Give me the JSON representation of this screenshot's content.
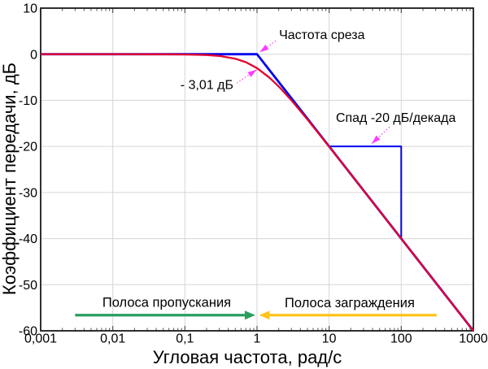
{
  "chart_data": {
    "type": "line",
    "title": "",
    "xlabel": "Угловая частота, рад/с",
    "ylabel": "Коэффициент передачи, дБ",
    "x_scale": "log",
    "x_range": [
      0.001,
      1000
    ],
    "y_range": [
      -60,
      10
    ],
    "grid": true,
    "colors": {
      "response": "#e4032e",
      "asymptote": "#0000ee",
      "callout": "#ff3dff",
      "passband": "#2a9d5f",
      "stopband": "#ffc41d",
      "grid": "#d6d6d6",
      "frame": "#1a1a1a",
      "tick": "#555555"
    },
    "x_major_ticks": [
      {
        "v": 0.001,
        "label": "0,001"
      },
      {
        "v": 0.01,
        "label": "0,01"
      },
      {
        "v": 0.1,
        "label": "0,1"
      },
      {
        "v": 1,
        "label": "1"
      },
      {
        "v": 10,
        "label": "10"
      },
      {
        "v": 100,
        "label": "100"
      },
      {
        "v": 1000,
        "label": "1000"
      }
    ],
    "y_major_ticks": [
      {
        "v": 10,
        "label": "10"
      },
      {
        "v": 0,
        "label": "0"
      },
      {
        "v": -10,
        "label": "-10"
      },
      {
        "v": -20,
        "label": "-20"
      },
      {
        "v": -30,
        "label": "-30"
      },
      {
        "v": -40,
        "label": "-40"
      },
      {
        "v": -50,
        "label": "-50"
      },
      {
        "v": -60,
        "label": "-60"
      }
    ],
    "series": [
      {
        "name": "slope-indicator",
        "color": "#0000ee",
        "width": 2,
        "points": [
          [
            10,
            -20
          ],
          [
            100,
            -20
          ],
          [
            100,
            -40
          ]
        ]
      },
      {
        "name": "asymptote",
        "color": "#0000ee",
        "width": 2.8,
        "points": [
          [
            0.001,
            0
          ],
          [
            1,
            0
          ],
          [
            1000,
            -60
          ]
        ]
      },
      {
        "name": "response",
        "color": "#e4032e",
        "width": 2.3,
        "points": [
          [
            0.001,
            0
          ],
          [
            0.01,
            0
          ],
          [
            0.05,
            -0.011
          ],
          [
            0.1,
            -0.043
          ],
          [
            0.2,
            -0.17
          ],
          [
            0.3,
            -0.374
          ],
          [
            0.5,
            -0.969
          ],
          [
            0.7,
            -1.732
          ],
          [
            1,
            -3.01
          ],
          [
            1.5,
            -5.12
          ],
          [
            2,
            -6.99
          ],
          [
            3,
            -10
          ],
          [
            5,
            -14.15
          ],
          [
            7,
            -16.99
          ],
          [
            10,
            -20.04
          ],
          [
            20,
            -26.03
          ],
          [
            30,
            -29.55
          ],
          [
            50,
            -33.98
          ],
          [
            100,
            -40
          ],
          [
            200,
            -46.02
          ],
          [
            500,
            -53.98
          ],
          [
            1000,
            -60
          ]
        ]
      }
    ],
    "annotations": [
      {
        "id": "cutoff-frequency",
        "text": "Частота среза",
        "anchor": "start",
        "text_x": 2.02,
        "text_y": 3.3,
        "arrow": {
          "x1": 1.83,
          "y1": 2.9,
          "x2": 1.09,
          "y2": 0.45
        },
        "color": "#ff3dff"
      },
      {
        "id": "minus-3db",
        "text": "- 3,01 дБ",
        "anchor": "end",
        "text_x": 0.471,
        "text_y": -7.5,
        "arrow": {
          "x1": 0.523,
          "y1": -6.25,
          "x2": 0.99,
          "y2": -3.35
        },
        "color": "#ff3dff"
      },
      {
        "id": "rolloff-slope",
        "text": "Спад -20 дБ/декада",
        "anchor": "start",
        "text_x": 12.4,
        "text_y": -14.7,
        "arrow": {
          "x1": 68.9,
          "y1": -15.8,
          "x2": 38.9,
          "y2": -19.4
        },
        "color": "#ff3dff"
      }
    ],
    "bands": [
      {
        "id": "passband",
        "label": "Полоса пропускания",
        "label_x": 0.056,
        "label_y": -54.8,
        "y": -56.6,
        "arrow_from": 0.003,
        "arrow_to": 0.949,
        "color": "#2a9d5f"
      },
      {
        "id": "stopband",
        "label": "Полоса заграждения",
        "label_x": 19.3,
        "label_y": -54.9,
        "y": -56.6,
        "arrow_from": 310,
        "arrow_to": 1.067,
        "color": "#ffc41d"
      }
    ]
  }
}
